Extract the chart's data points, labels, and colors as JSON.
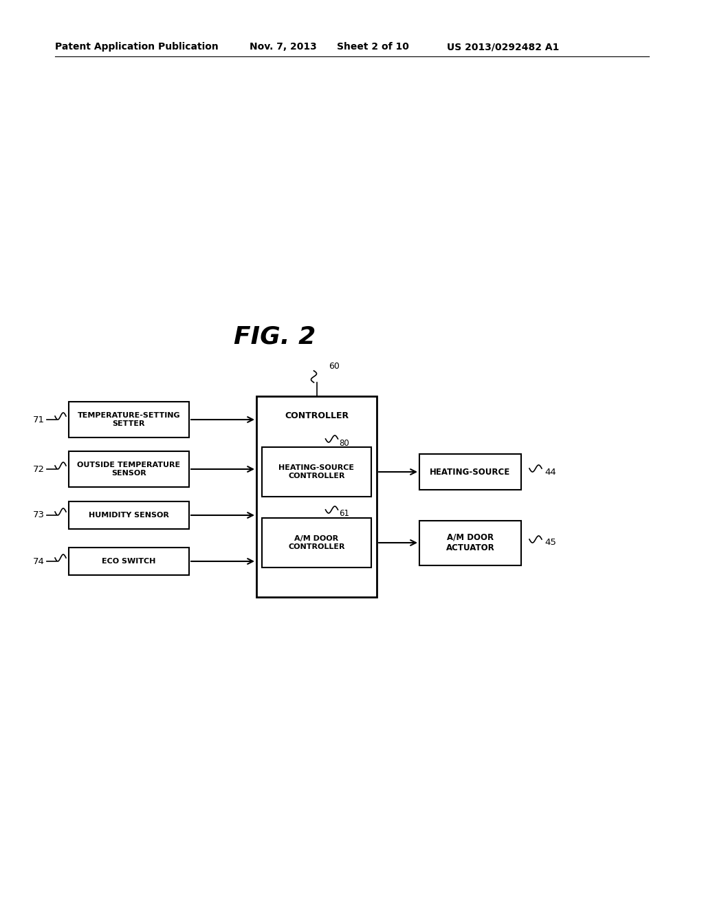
{
  "background_color": "#ffffff",
  "header_text": "Patent Application Publication",
  "header_date": "Nov. 7, 2013",
  "header_sheet": "Sheet 2 of 10",
  "header_patent": "US 2013/0292482 A1",
  "fig_label": "FIG. 2",
  "input_boxes": [
    {
      "label": "TEMPERATURE-SETTING\nSETTER",
      "ref": "71"
    },
    {
      "label": "OUTSIDE TEMPERATURE\nSENSOR",
      "ref": "72"
    },
    {
      "label": "HUMIDITY SENSOR",
      "ref": "73"
    },
    {
      "label": "ECO SWITCH",
      "ref": "74"
    }
  ],
  "controller_label": "CONTROLLER",
  "controller_ref": "60",
  "sub_boxes": [
    {
      "label": "HEATING-SOURCE\nCONTROLLER",
      "ref": "80"
    },
    {
      "label": "A/M DOOR\nCONTROLLER",
      "ref": "61"
    }
  ],
  "output_boxes": [
    {
      "label": "HEATING-SOURCE",
      "ref": "44"
    },
    {
      "label": "A/M DOOR\nACTUATOR",
      "ref": "45"
    }
  ]
}
